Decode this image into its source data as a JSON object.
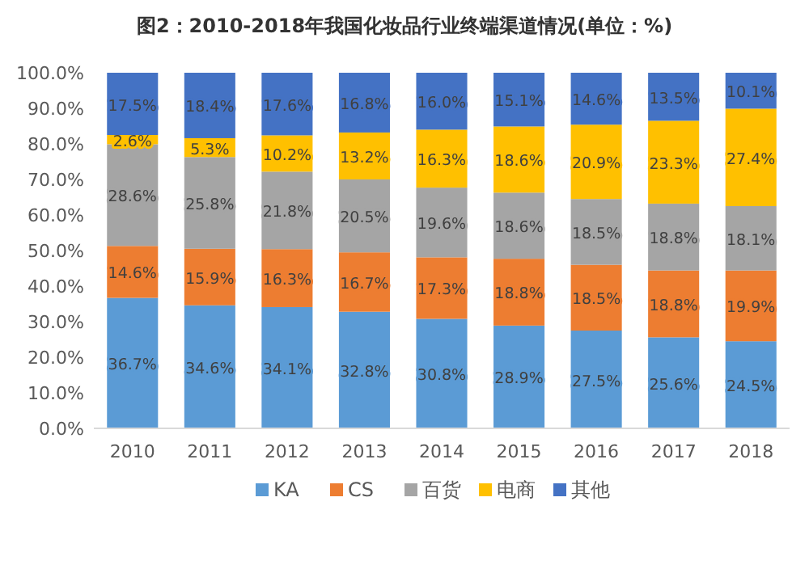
{
  "chart_data": {
    "type": "bar",
    "stacked": true,
    "title": "图2：2010-2018年我国化妆品行业终端渠道情况(单位：%)",
    "categories": [
      "2010",
      "2011",
      "2012",
      "2013",
      "2014",
      "2015",
      "2016",
      "2017",
      "2018"
    ],
    "series": [
      {
        "name": "KA",
        "color": "#5b9bd5",
        "values": [
          36.7,
          34.6,
          34.1,
          32.8,
          30.8,
          28.9,
          27.5,
          25.6,
          24.5
        ],
        "value_labels": [
          "36.7%",
          "34.6%",
          "34.1%",
          "32.8%",
          "30.8%",
          "28.9%",
          "27.5%",
          "25.6%",
          "24.5%"
        ]
      },
      {
        "name": "CS",
        "color": "#ed7d31",
        "values": [
          14.6,
          15.9,
          16.3,
          16.7,
          17.3,
          18.8,
          18.5,
          18.8,
          19.9
        ],
        "value_labels": [
          "14.6%",
          "15.9%",
          "16.3%",
          "16.7%",
          "17.3%",
          "18.8%",
          "18.5%",
          "18.8%",
          "19.9%"
        ]
      },
      {
        "name": "百货",
        "color": "#a5a5a5",
        "values": [
          28.6,
          25.8,
          21.8,
          20.5,
          19.6,
          18.6,
          18.5,
          18.8,
          18.1
        ],
        "value_labels": [
          "28.6%",
          "25.8%",
          "21.8%",
          "20.5%",
          "19.6%",
          "18.6%",
          "18.5%",
          "18.8%",
          "18.1%"
        ]
      },
      {
        "name": "电商",
        "color": "#ffc000",
        "values": [
          2.6,
          5.3,
          10.2,
          13.2,
          16.3,
          18.6,
          20.9,
          23.3,
          27.4
        ],
        "value_labels": [
          "2.6%",
          "5.3%",
          "10.2%",
          "13.2%",
          "16.3%",
          "18.6%",
          "20.9%",
          "23.3%",
          "27.4%"
        ]
      },
      {
        "name": "其他",
        "color": "#4472c4",
        "values": [
          17.5,
          18.4,
          17.6,
          16.8,
          16.0,
          15.1,
          14.6,
          13.5,
          10.1
        ],
        "value_labels": [
          "17.5%",
          "18.4%",
          "17.6%",
          "16.8%",
          "16.0%",
          "15.1%",
          "14.6%",
          "13.5%",
          "10.1%"
        ]
      }
    ],
    "ylim": [
      0,
      100
    ],
    "yticks": [
      {
        "value": 0,
        "label": "0.0%"
      },
      {
        "value": 10,
        "label": "10.0%"
      },
      {
        "value": 20,
        "label": "20.0%"
      },
      {
        "value": 30,
        "label": "30.0%"
      },
      {
        "value": 40,
        "label": "40.0%"
      },
      {
        "value": 50,
        "label": "50.0%"
      },
      {
        "value": 60,
        "label": "60.0%"
      },
      {
        "value": 70,
        "label": "70.0%"
      },
      {
        "value": 80,
        "label": "80.0%"
      },
      {
        "value": 90,
        "label": "90.0%"
      },
      {
        "value": 100,
        "label": "100.0%"
      }
    ],
    "legend": "bottom"
  }
}
